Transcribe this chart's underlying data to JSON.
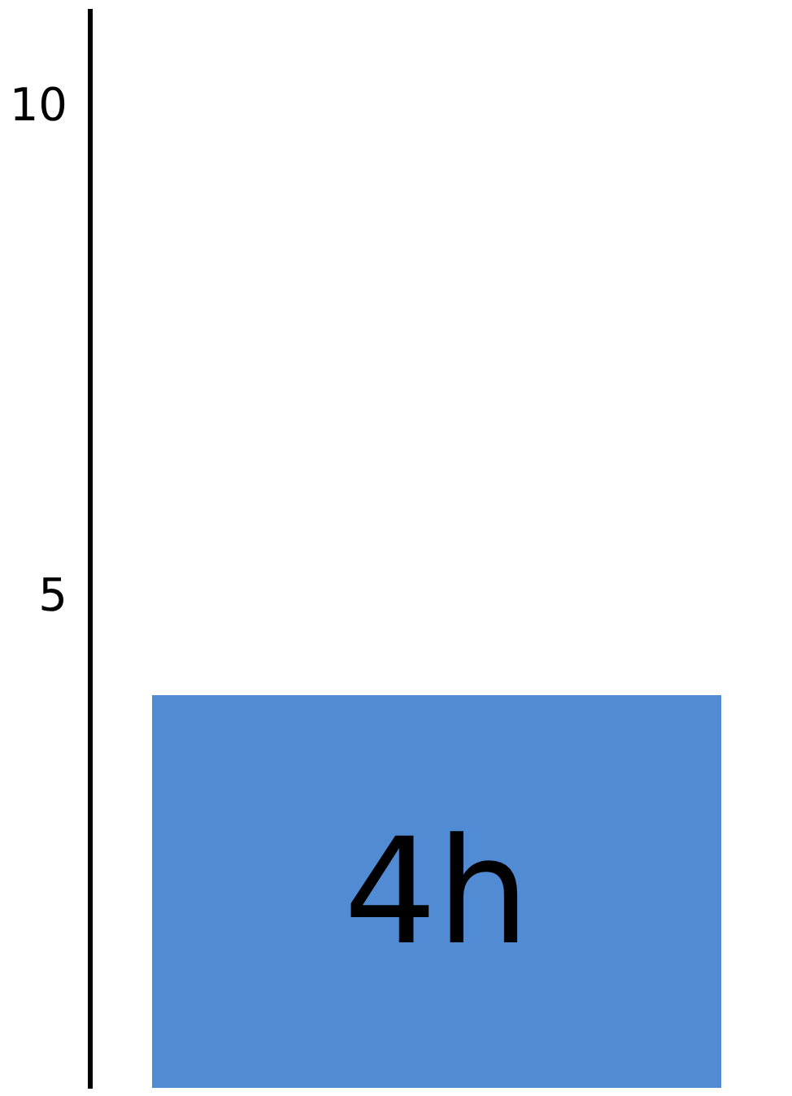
{
  "chart_data": {
    "type": "bar",
    "categories": [
      null
    ],
    "values": [
      4
    ],
    "value_labels": [
      "4h"
    ],
    "color": "#518bd3",
    "ylim": [
      0,
      11
    ],
    "yticks": [
      5,
      10
    ],
    "grid": false,
    "tick_labels": "y"
  }
}
